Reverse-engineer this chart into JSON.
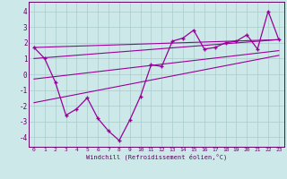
{
  "xlabel": "Windchill (Refroidissement éolien,°C)",
  "background_color": "#cce8e8",
  "line_color": "#990099",
  "x_main": [
    0,
    1,
    2,
    3,
    4,
    5,
    6,
    7,
    8,
    9,
    10,
    11,
    12,
    13,
    14,
    15,
    16,
    17,
    18,
    19,
    20,
    21,
    22,
    23
  ],
  "y_main": [
    1.7,
    1.0,
    -0.5,
    -2.6,
    -2.2,
    -1.5,
    -2.8,
    -3.6,
    -4.2,
    -2.9,
    -1.4,
    0.6,
    0.5,
    2.1,
    2.3,
    2.8,
    1.6,
    1.7,
    2.0,
    2.1,
    2.5,
    1.6,
    4.0,
    2.2
  ],
  "trend_lines": [
    {
      "x": [
        0,
        23
      ],
      "y": [
        1.7,
        2.2
      ]
    },
    {
      "x": [
        0,
        23
      ],
      "y": [
        1.0,
        2.2
      ]
    },
    {
      "x": [
        0,
        23
      ],
      "y": [
        -0.3,
        1.5
      ]
    },
    {
      "x": [
        0,
        23
      ],
      "y": [
        -1.8,
        1.2
      ]
    }
  ],
  "xlim": [
    -0.5,
    23.5
  ],
  "ylim": [
    -4.6,
    4.6
  ],
  "yticks": [
    -4,
    -3,
    -2,
    -1,
    0,
    1,
    2,
    3,
    4
  ],
  "xticks": [
    0,
    1,
    2,
    3,
    4,
    5,
    6,
    7,
    8,
    9,
    10,
    11,
    12,
    13,
    14,
    15,
    16,
    17,
    18,
    19,
    20,
    21,
    22,
    23
  ],
  "grid_color": "#aacccc",
  "tick_color": "#660066",
  "spine_color": "#660066"
}
